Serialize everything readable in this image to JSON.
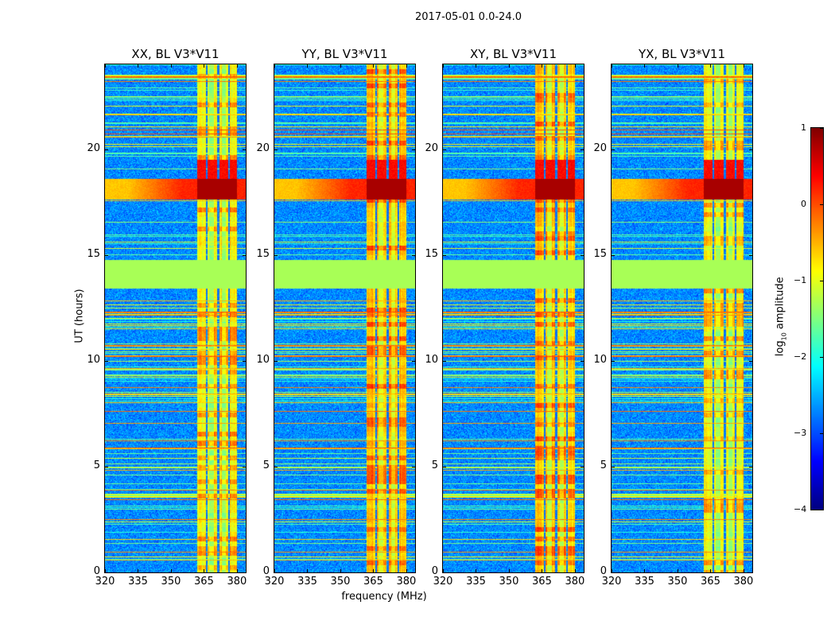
{
  "chart_data": {
    "type": "heatmap",
    "title": "2017-05-01 0.0-24.0",
    "xlabel": "frequency (MHz)",
    "ylabel": "UT (hours)",
    "xlim": [
      320,
      384
    ],
    "ylim": [
      0,
      24
    ],
    "xticks": [
      "320",
      "335",
      "350",
      "365",
      "380"
    ],
    "yticks": [
      "0",
      "5",
      "10",
      "15",
      "20"
    ],
    "panels": [
      {
        "title": "XX, BL V3*V11",
        "band_level": -0.9
      },
      {
        "title": "YY, BL V3*V11",
        "band_level": -0.6
      },
      {
        "title": "XY, BL V3*V11",
        "band_level": -0.7
      },
      {
        "title": "YX, BL V3*V11",
        "band_level": -0.9
      }
    ],
    "features": {
      "background_log_amplitude": -2.7,
      "rfi_band_mhz": [
        362,
        380
      ],
      "flagged_hours": [
        13.4,
        14.75
      ],
      "flagged_value": -1.3,
      "strong_rfi_hours": [
        17.6,
        18.6
      ],
      "strong_rfi_value": 0.8
    },
    "colorbar": {
      "label_main": "log",
      "label_sub": "10",
      "label_rest": " amplitude",
      "colormap": "jet",
      "range": [
        -4,
        1
      ],
      "ticks": [
        "1",
        "0",
        "−1",
        "−2",
        "−3",
        "−4"
      ]
    }
  }
}
